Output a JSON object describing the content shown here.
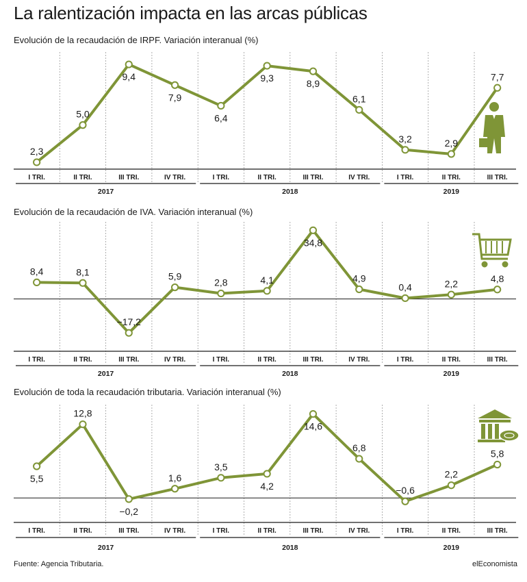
{
  "title": "La ralentización impacta en las arcas públicas",
  "source": "Fuente: Agencia Tributaria.",
  "brand": "elEconomista",
  "colors": {
    "line": "#7f9537",
    "marker_fill": "#ffffff",
    "text": "#1a1a1a",
    "grid": "#9a9a9a",
    "axis": "#1a1a1a",
    "icon": "#7f9537"
  },
  "chart_data": [
    {
      "type": "line",
      "title": "Evolución de la recaudación de IRPF. Variación interanual (%)",
      "icon": "businessman-icon",
      "categories": [
        "I TRI.",
        "II TRI.",
        "III TRI.",
        "IV TRI.",
        "I TRI.",
        "II TRI.",
        "III TRI.",
        "IV TRI.",
        "I TRI.",
        "II TRI.",
        "III TRI."
      ],
      "years": [
        {
          "label": "2017",
          "start": 0,
          "end": 3
        },
        {
          "label": "2018",
          "start": 4,
          "end": 7
        },
        {
          "label": "2019",
          "start": 8,
          "end": 10
        }
      ],
      "values": [
        2.3,
        5.0,
        9.4,
        7.9,
        6.4,
        9.3,
        8.9,
        6.1,
        3.2,
        2.9,
        7.7
      ],
      "labels": [
        "2,3",
        "5,0",
        "9,4",
        "7,9",
        "6,4",
        "9,3",
        "8,9",
        "6,1",
        "3,2",
        "2,9",
        "7,7"
      ],
      "label_pos": [
        "above",
        "above",
        "below",
        "below",
        "below",
        "below",
        "below",
        "above",
        "above",
        "above",
        "above"
      ],
      "ylim": [
        1.8,
        10.0
      ],
      "zero_line": false
    },
    {
      "type": "line",
      "title": "Evolución de la recaudación de IVA. Variación interanual (%)",
      "icon": "shopping-cart-icon",
      "categories": [
        "I TRI.",
        "II TRI.",
        "III TRI.",
        "IV TRI.",
        "I TRI.",
        "II TRI.",
        "III TRI.",
        "IV TRI.",
        "I TRI.",
        "II TRI.",
        "III TRI."
      ],
      "years": [
        {
          "label": "2017",
          "start": 0,
          "end": 3
        },
        {
          "label": "2018",
          "start": 4,
          "end": 7
        },
        {
          "label": "2019",
          "start": 8,
          "end": 10
        }
      ],
      "values": [
        8.4,
        8.1,
        -17.2,
        5.9,
        2.8,
        4.1,
        34.8,
        4.9,
        0.4,
        2.2,
        4.8
      ],
      "labels": [
        "8,4",
        "8,1",
        "−17,2",
        "5,9",
        "2,8",
        "4,1",
        "34,8",
        "4,9",
        "0,4",
        "2,2",
        "4,8"
      ],
      "label_pos": [
        "above",
        "above",
        "above",
        "above",
        "above",
        "above",
        "below",
        "above",
        "above",
        "above",
        "above"
      ],
      "ylim": [
        -22.0,
        37.0
      ],
      "zero_line": true
    },
    {
      "type": "line",
      "title": "Evolución de toda la recaudación tributaria. Variación interanual (%)",
      "icon": "bank-icon",
      "categories": [
        "I TRI.",
        "II TRI.",
        "III TRI.",
        "IV TRI.",
        "I TRI.",
        "II TRI.",
        "III TRI.",
        "IV TRI.",
        "I TRI.",
        "II TRI.",
        "III TRI."
      ],
      "years": [
        {
          "label": "2017",
          "start": 0,
          "end": 3
        },
        {
          "label": "2018",
          "start": 4,
          "end": 7
        },
        {
          "label": "2019",
          "start": 8,
          "end": 10
        }
      ],
      "values": [
        5.5,
        12.8,
        -0.2,
        1.6,
        3.5,
        4.2,
        14.6,
        6.8,
        -0.6,
        2.2,
        5.8
      ],
      "labels": [
        "5,5",
        "12,8",
        "−0,2",
        "1,6",
        "3,5",
        "4,2",
        "14,6",
        "6,8",
        "−0,6",
        "2,2",
        "5,8"
      ],
      "label_pos": [
        "below",
        "above",
        "below",
        "above",
        "above",
        "below",
        "below",
        "above",
        "above",
        "above",
        "above"
      ],
      "ylim": [
        -2.0,
        15.5
      ],
      "zero_line": true
    }
  ]
}
